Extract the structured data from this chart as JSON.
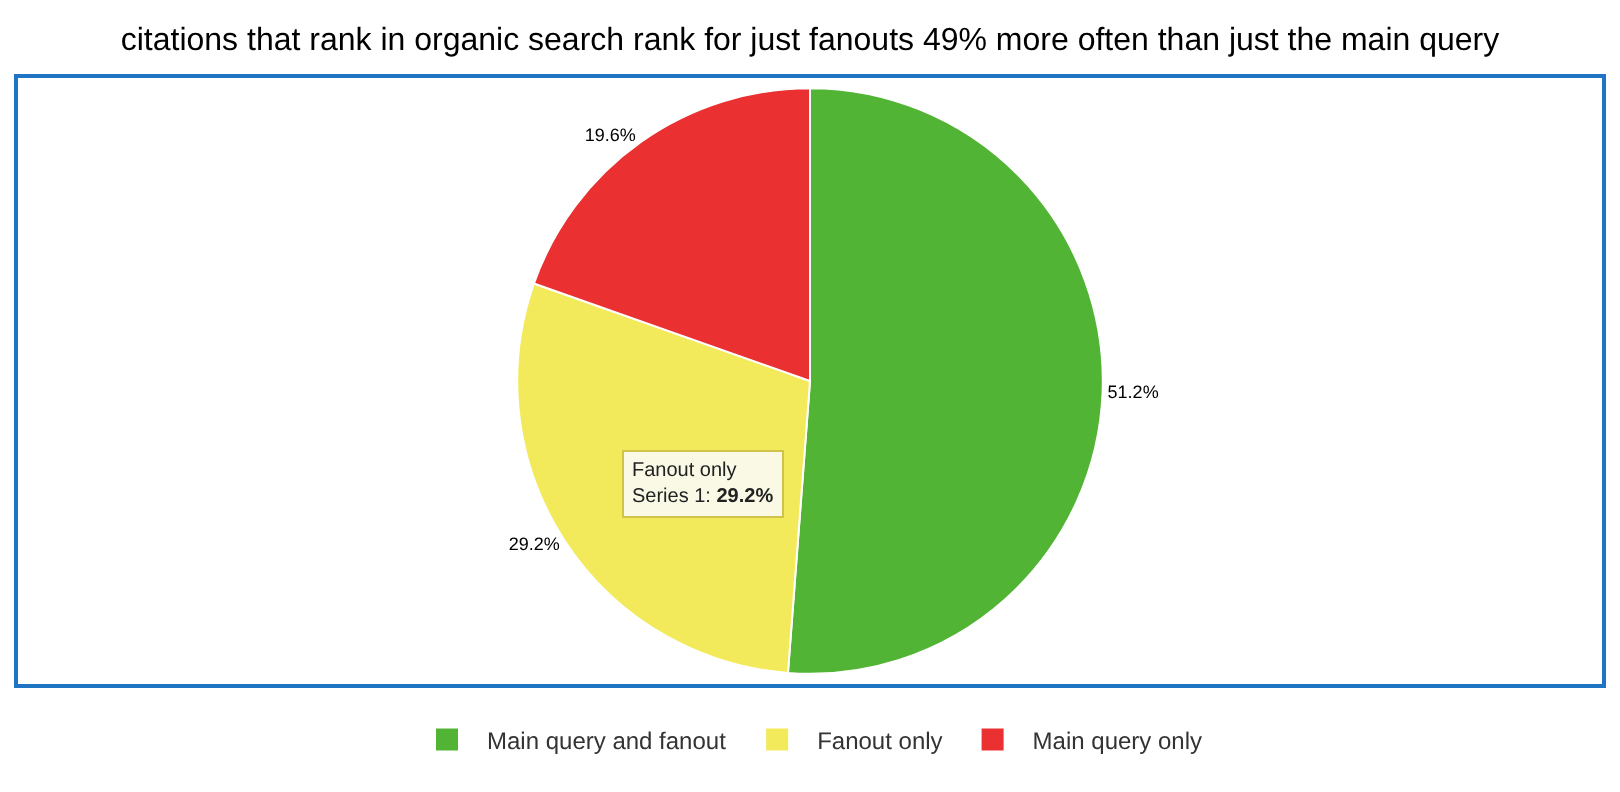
{
  "chart_data": {
    "type": "pie",
    "title": "citations that rank in organic search rank for just fanouts 49% more often than just the main query",
    "categories": [
      "Main query and fanout",
      "Fanout only",
      "Main query only"
    ],
    "values": [
      51.2,
      29.2,
      19.6
    ],
    "colors": [
      "#52b435",
      "#f2ea5a",
      "#ea3030"
    ],
    "value_labels": [
      "51.2%",
      "29.2%",
      "19.6%"
    ],
    "legend": "bottom",
    "annotations": [
      "Fanout only\nSeries 1: 29.2%"
    ]
  }
}
